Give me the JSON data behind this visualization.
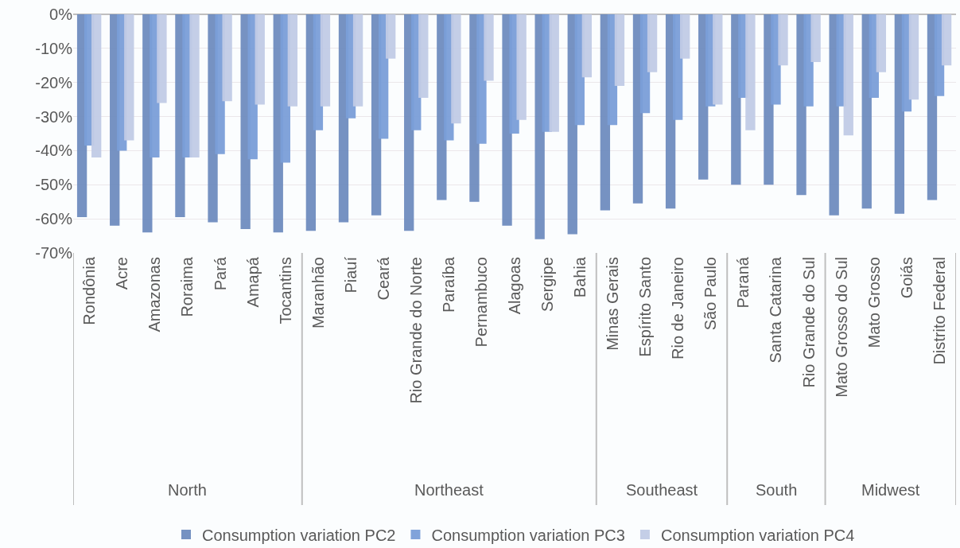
{
  "chart_data": {
    "type": "bar",
    "categories": [
      "Rondônia",
      "Acre",
      "Amazonas",
      "Roraima",
      "Pará",
      "Amapá",
      "Tocantins",
      "Maranhão",
      "Piauí",
      "Ceará",
      "Rio Grande do Norte",
      "Paraíba",
      "Pernambuco",
      "Alagoas",
      "Sergipe",
      "Bahia",
      "Minas Gerais",
      "Espírito Santo",
      "Rio de Janeiro",
      "São Paulo",
      "Paraná",
      "Santa Catarina",
      "Rio Grande do Sul",
      "Mato Grosso do Sul",
      "Mato Grosso",
      "Goiás",
      "Distrito Federal"
    ],
    "series": [
      {
        "name": "Consumption variation PC2",
        "color": "#6f8dbf",
        "values": [
          -59.5,
          -62,
          -64,
          -59.5,
          -61,
          -63,
          -64,
          -63.5,
          -61,
          -59,
          -63.5,
          -54.5,
          -55,
          -62,
          -66,
          -64.5,
          -57.5,
          -55.5,
          -57,
          -48.5,
          -50,
          -50,
          -53,
          -59,
          -57,
          -58.5,
          -54.5
        ]
      },
      {
        "name": "Consumption variation PC3",
        "color": "#7b9fd9",
        "values": [
          -38.5,
          -40,
          -42,
          -42,
          -41,
          -42.5,
          -43.5,
          -34,
          -30.5,
          -36.5,
          -34,
          -37,
          -38,
          -35,
          -34.5,
          -32.5,
          -32.5,
          -29,
          -31,
          -27,
          -24.5,
          -26.5,
          -27,
          -27,
          -24.5,
          -28.5,
          -24
        ]
      },
      {
        "name": "Consumption variation PC4",
        "color": "#c2cce6",
        "values": [
          -42,
          -37,
          -26,
          -42,
          -25.5,
          -26.5,
          -27,
          -27,
          -27,
          -13,
          -24.5,
          -32,
          -19.5,
          -31,
          -34.5,
          -18.5,
          -21,
          -17,
          -13,
          -26.5,
          -34,
          -15,
          -14,
          -35.5,
          -17,
          -25,
          -15
        ]
      }
    ],
    "annotations": [
      "North",
      "Northeast",
      "Southeast",
      "South",
      "Midwest"
    ],
    "ylim": [
      -70,
      0
    ],
    "yticks": [
      {
        "value": -70,
        "label": "-70%"
      },
      {
        "value": -60,
        "label": "-60%"
      },
      {
        "value": -50,
        "label": "-50%"
      },
      {
        "value": -40,
        "label": "-40%"
      },
      {
        "value": -30,
        "label": "-30%"
      },
      {
        "value": -20,
        "label": "-20%"
      },
      {
        "value": -10,
        "label": "-10%"
      },
      {
        "value": 0,
        "label": "0%"
      }
    ],
    "grid": "y",
    "legend": "bottom"
  }
}
